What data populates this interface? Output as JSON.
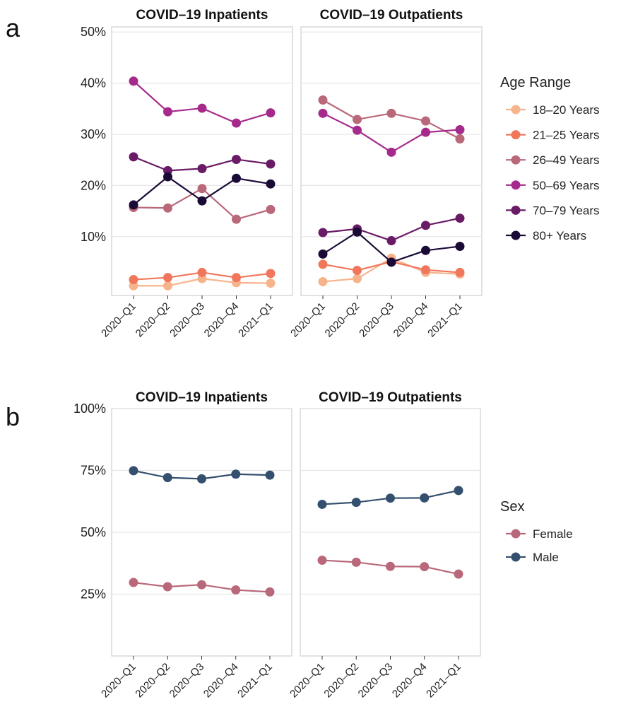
{
  "figure": {
    "panels": [
      {
        "letter": "a"
      },
      {
        "letter": "b"
      }
    ]
  },
  "chart_data": [
    {
      "type": "line",
      "panel": "a",
      "facet": "COVID–19 Inpatients",
      "categories": [
        "2020–Q1",
        "2020–Q2",
        "2020–Q3",
        "2020–Q4",
        "2021–Q1"
      ],
      "ytick_labels": [
        "10%",
        "20%",
        "30%",
        "40%",
        "50%"
      ],
      "ylim": [
        -1.5,
        51
      ],
      "legend_title": "Age Range",
      "legend_position": "right",
      "series": [
        {
          "name": "18–20 Years",
          "color": "#F7B48C",
          "values": [
            0.4,
            0.4,
            1.8,
            1.0,
            0.9
          ]
        },
        {
          "name": "21–25 Years",
          "color": "#F1775C",
          "values": [
            1.6,
            2.0,
            3.0,
            2.0,
            2.8
          ]
        },
        {
          "name": "26–49 Years",
          "color": "#B9687A",
          "values": [
            15.7,
            15.6,
            19.4,
            13.4,
            15.3
          ]
        },
        {
          "name": "50–69 Years",
          "color": "#A62A8C",
          "values": [
            40.4,
            34.4,
            35.1,
            32.2,
            34.2
          ]
        },
        {
          "name": "70–79 Years",
          "color": "#6A1B66",
          "values": [
            25.6,
            22.9,
            23.3,
            25.1,
            24.2
          ]
        },
        {
          "name": "80+ Years",
          "color": "#1A0A36",
          "values": [
            16.2,
            21.7,
            17.0,
            21.4,
            20.3
          ]
        }
      ]
    },
    {
      "type": "line",
      "panel": "a",
      "facet": "COVID–19 Outpatients",
      "categories": [
        "2020–Q1",
        "2020–Q2",
        "2020–Q3",
        "2020–Q4",
        "2021–Q1"
      ],
      "ytick_labels": [
        "10%",
        "20%",
        "30%",
        "40%",
        "50%"
      ],
      "ylim": [
        -1.5,
        51
      ],
      "series": [
        {
          "name": "18–20 Years",
          "color": "#F7B48C",
          "values": [
            1.2,
            1.8,
            5.8,
            3.0,
            2.7
          ]
        },
        {
          "name": "21–25 Years",
          "color": "#F1775C",
          "values": [
            4.6,
            3.4,
            5.1,
            3.5,
            3.0
          ]
        },
        {
          "name": "26–49 Years",
          "color": "#B9687A",
          "values": [
            36.7,
            32.9,
            34.1,
            32.6,
            29.1
          ]
        },
        {
          "name": "50–69 Years",
          "color": "#A62A8C",
          "values": [
            34.1,
            30.8,
            26.5,
            30.4,
            30.9
          ]
        },
        {
          "name": "70–79 Years",
          "color": "#6A1B66",
          "values": [
            10.8,
            11.5,
            9.2,
            12.2,
            13.6
          ]
        },
        {
          "name": "80+ Years",
          "color": "#1A0A36",
          "values": [
            6.6,
            10.9,
            5.0,
            7.3,
            8.1
          ]
        }
      ]
    },
    {
      "type": "line",
      "panel": "b",
      "facet": "COVID–19 Inpatients",
      "categories": [
        "2020–Q1",
        "2020–Q2",
        "2020–Q3",
        "2020–Q4",
        "2021–Q1"
      ],
      "ytick_labels": [
        "25%",
        "50%",
        "75%",
        "100%"
      ],
      "ylim": [
        0,
        100
      ],
      "legend_title": "Sex",
      "legend_position": "right",
      "series": [
        {
          "name": "Female",
          "color": "#B9687A",
          "values": [
            29.7,
            28.0,
            28.8,
            26.7,
            25.9
          ]
        },
        {
          "name": "Male",
          "color": "#35506E",
          "values": [
            74.9,
            72.1,
            71.6,
            73.5,
            73.1
          ]
        }
      ]
    },
    {
      "type": "line",
      "panel": "b",
      "facet": "COVID–19 Outpatients",
      "categories": [
        "2020–Q1",
        "2020–Q2",
        "2020–Q3",
        "2020–Q4",
        "2021–Q1"
      ],
      "ytick_labels": [
        "25%",
        "50%",
        "75%",
        "100%"
      ],
      "ylim": [
        0,
        100
      ],
      "series": [
        {
          "name": "Female",
          "color": "#B9687A",
          "values": [
            38.7,
            37.9,
            36.2,
            36.1,
            33.1
          ]
        },
        {
          "name": "Male",
          "color": "#35506E",
          "values": [
            61.3,
            62.1,
            63.8,
            63.9,
            66.9
          ]
        }
      ]
    }
  ]
}
